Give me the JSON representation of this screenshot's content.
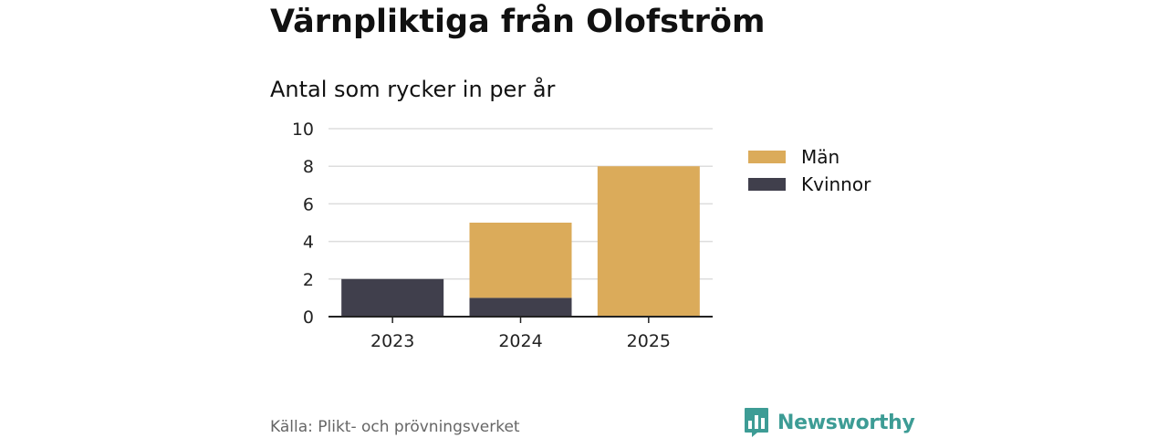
{
  "header": {
    "title": "Värnpliktiga från Olofström",
    "subtitle": "Antal som rycker in per år"
  },
  "chart_data": {
    "type": "bar",
    "stacked": true,
    "categories": [
      "2023",
      "2024",
      "2025"
    ],
    "series": [
      {
        "name": "Kvinnor",
        "values": [
          2,
          1,
          0
        ],
        "color": "#403f4c"
      },
      {
        "name": "Män",
        "values": [
          0,
          4,
          8
        ],
        "color": "#dbab5a"
      }
    ],
    "ylim": [
      0,
      10
    ],
    "yticks": [
      "0",
      "2",
      "4",
      "6",
      "8",
      "10"
    ],
    "grid": true,
    "legend_placement": "right"
  },
  "legend": {
    "items": [
      {
        "label": "Män",
        "color": "#dbab5a"
      },
      {
        "label": "Kvinnor",
        "color": "#403f4c"
      }
    ]
  },
  "footer": {
    "source": "Källa: Plikt- och prövningsverket",
    "brand": "Newsworthy",
    "brand_color": "#3d9c95",
    "brand_icon": "bar-chart-speech-bubble-icon"
  }
}
